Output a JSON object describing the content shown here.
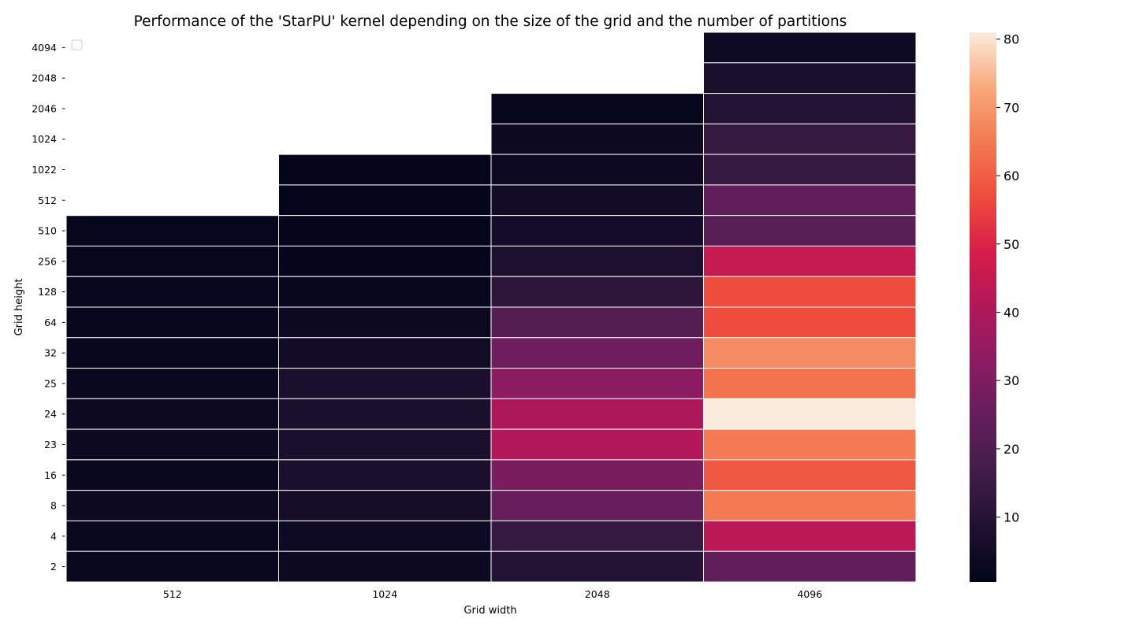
{
  "chart_data": {
    "type": "heatmap",
    "title": "Performance of the 'StarPU' kernel depending on the size of the grid and the number of partitions",
    "xlabel": "Grid width",
    "ylabel": "Grid height",
    "x_categories": [
      "512",
      "1024",
      "2048",
      "4096"
    ],
    "y_categories": [
      "4094",
      "2048",
      "2046",
      "1024",
      "1022",
      "512",
      "510",
      "256",
      "128",
      "64",
      "32",
      "25",
      "24",
      "23",
      "16",
      "8",
      "4",
      "2"
    ],
    "values": [
      [
        null,
        null,
        null,
        4
      ],
      [
        null,
        null,
        null,
        7
      ],
      [
        null,
        null,
        1.5,
        10
      ],
      [
        null,
        null,
        3,
        14
      ],
      [
        null,
        1,
        3.5,
        14
      ],
      [
        null,
        1,
        5,
        24
      ],
      [
        1.5,
        1,
        5.5,
        22
      ],
      [
        1.5,
        1,
        8,
        45
      ],
      [
        2,
        2,
        12,
        57
      ],
      [
        2,
        3,
        21,
        57
      ],
      [
        2,
        5,
        27,
        68
      ],
      [
        2.5,
        7,
        33,
        64
      ],
      [
        3,
        7,
        40,
        81
      ],
      [
        3,
        7,
        41,
        65
      ],
      [
        2.5,
        7,
        29,
        59
      ],
      [
        3,
        6,
        25,
        65
      ],
      [
        2.5,
        4,
        14,
        43
      ],
      [
        2.5,
        3,
        10,
        24
      ]
    ],
    "colorbar": {
      "ticks": [
        10,
        20,
        30,
        40,
        50,
        60,
        70,
        80
      ],
      "range": [
        0.5,
        81
      ]
    },
    "colormap": "rocket",
    "legend": "top-left, empty",
    "grid": false
  }
}
